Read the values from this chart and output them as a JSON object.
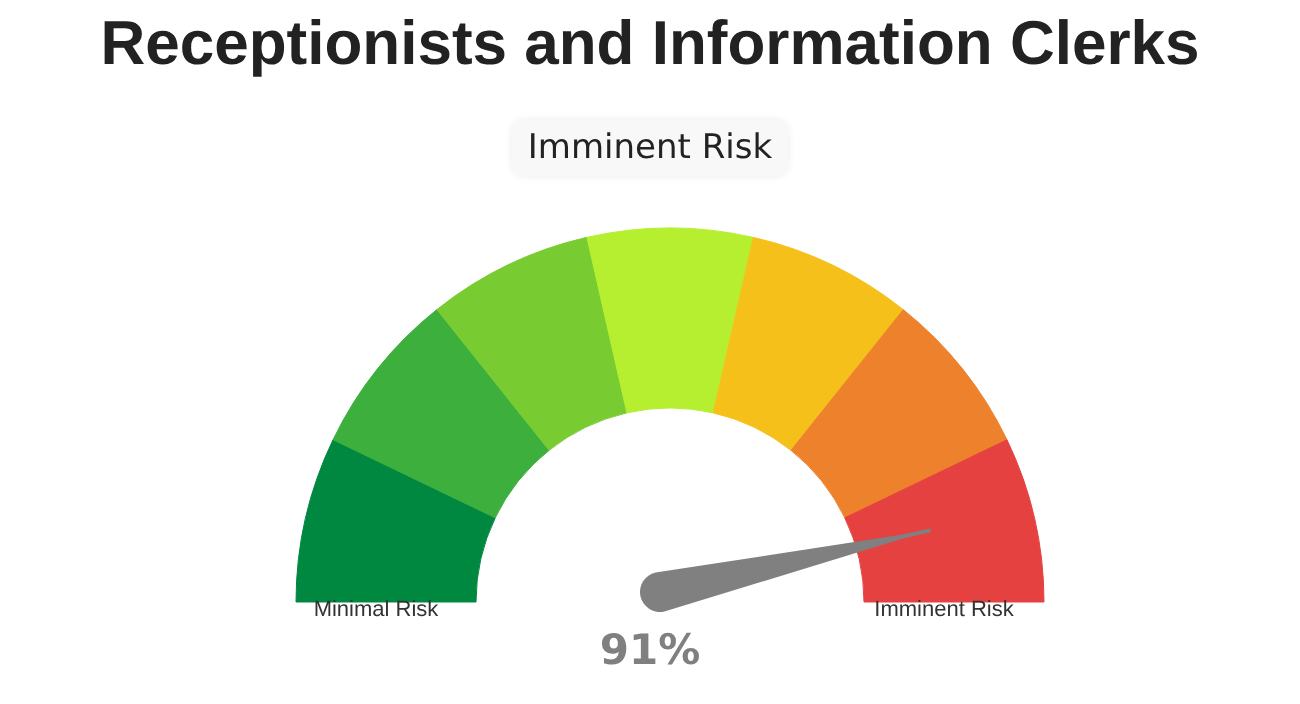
{
  "chart_data": {
    "type": "donut",
    "title": "Receptionists and Information Clerks",
    "subtitle": "Imminent Risk",
    "categories": [
      "Minimal Risk",
      null,
      null,
      null,
      null,
      null,
      "Imminent Risk"
    ],
    "values": [
      14.29,
      14.29,
      14.29,
      14.29,
      14.28,
      14.28,
      14.28
    ],
    "colors": [
      "#008841",
      "#3caf3d",
      "#78cc32",
      "#b5ef2f",
      "#f6c01b",
      "#ee812b",
      "#e64141"
    ],
    "needle": "Imminent Risk",
    "annotations": [
      "91%"
    ]
  }
}
